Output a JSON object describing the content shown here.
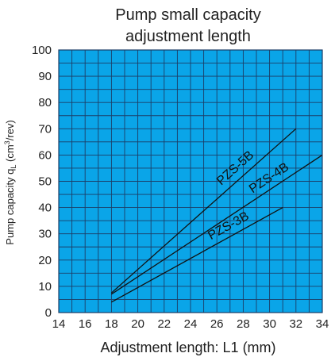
{
  "chart_data": {
    "type": "line",
    "title_lines": [
      "Pump small capacity",
      "adjustment length"
    ],
    "xlabel": "Adjustment length: L1 (mm)",
    "ylabel": "Pump capacity q",
    "ylabel_sub": "L",
    "ylabel_unit_pre": " (cm",
    "ylabel_unit_sup": "3",
    "ylabel_unit_post": "/rev)",
    "xlim": [
      14,
      34
    ],
    "ylim": [
      0,
      100
    ],
    "xticks": [
      14,
      16,
      18,
      20,
      22,
      24,
      26,
      28,
      30,
      32,
      34
    ],
    "yticks": [
      0,
      10,
      20,
      30,
      40,
      50,
      60,
      70,
      80,
      90,
      100
    ],
    "x_minor_step": 1,
    "y_minor_step": 5,
    "grid": true,
    "plot_background": "#0aa5e8",
    "grid_color": "#1c3d66",
    "line_color": "#111111",
    "series": [
      {
        "name": "PZS-5B",
        "x": [
          18,
          32
        ],
        "y": [
          7.5,
          70
        ]
      },
      {
        "name": "PZS-4B",
        "x": [
          18,
          34
        ],
        "y": [
          7,
          60
        ]
      },
      {
        "name": "PZS-3B",
        "x": [
          18,
          31
        ],
        "y": [
          4,
          40
        ]
      }
    ]
  }
}
